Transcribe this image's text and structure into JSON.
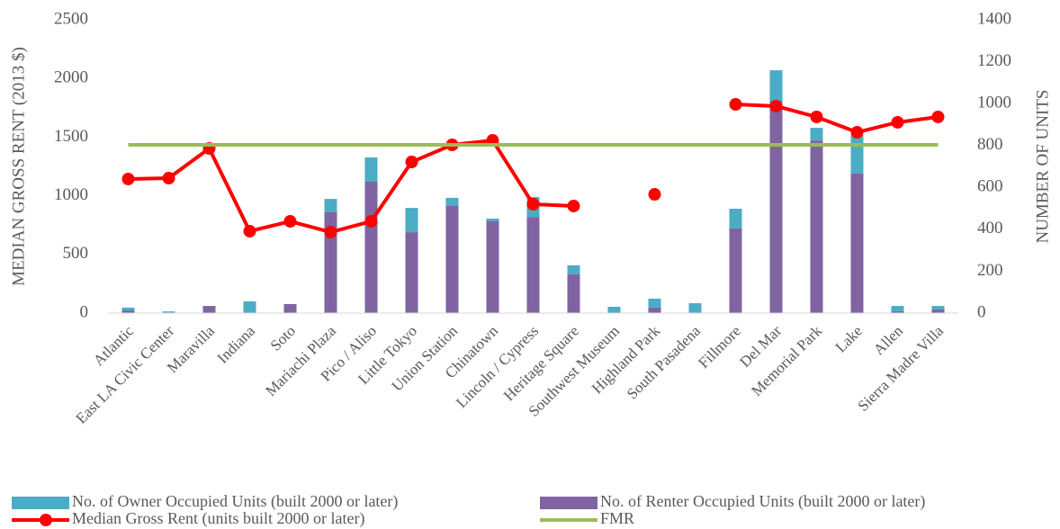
{
  "chart_data": {
    "type": "combo",
    "y_label": "MEDIAN GROSS RENT (2013 $)",
    "y2_label": "NUMBER OF UNITS",
    "categories": [
      "Atlantic",
      "East LA Civic Center",
      "Maravilla",
      "Indiana",
      "Soto",
      "Mariachi Plaza",
      "Pico / Aliso",
      "Little Tokyo",
      "Union Station",
      "Chinatown",
      "Lincoln / Cypress",
      "Heritage Square",
      "Southwest Museum",
      "Highland Park",
      "South Pasadena",
      "Fillmore",
      "Del Mar",
      "Memorial Park",
      "Lake",
      "Allen",
      "Sierra Madre Villa"
    ],
    "ylim": [
      0,
      2500
    ],
    "yticks": [
      0,
      500,
      1000,
      1500,
      2000,
      2500
    ],
    "y2lim": [
      0,
      1400
    ],
    "y2ticks": [
      0,
      200,
      400,
      600,
      800,
      1000,
      1200,
      1400
    ],
    "grid": false,
    "series": [
      {
        "name": "No. of Renter Occupied Units (built 2000 or later)",
        "type": "bar",
        "axis": "y2",
        "color": "#8064a2",
        "values": [
          13,
          0,
          34,
          0,
          43,
          481,
          627,
          386,
          511,
          438,
          459,
          185,
          0,
          26,
          0,
          404,
          1013,
          824,
          666,
          9,
          17
        ]
      },
      {
        "name": "No. of Owner Occupied Units (built 2000 or later)",
        "type": "bar",
        "axis": "y2",
        "color": "#4bacc6",
        "values": [
          13,
          8,
          0,
          56,
          0,
          64,
          116,
          116,
          39,
          13,
          95,
          43,
          30,
          43,
          47,
          94,
          146,
          60,
          184,
          25,
          17
        ]
      },
      {
        "name": "Median Gross Rent (units built 2000 or later)",
        "type": "line",
        "axis": "y",
        "color": "#ff0000",
        "values": [
          1143,
          1150,
          1403,
          698,
          782,
          690,
          782,
          1288,
          1434,
          1472,
          928,
          913,
          null,
          1012,
          null,
          1779,
          1764,
          1672,
          1541,
          1626,
          1672
        ]
      },
      {
        "name": "FMR",
        "type": "line",
        "axis": "y",
        "color": "#9bbb59",
        "values": [
          1434,
          1434,
          1434,
          1434,
          1434,
          1434,
          1434,
          1434,
          1434,
          1434,
          1434,
          1434,
          1434,
          1434,
          1434,
          1434,
          1434,
          1434,
          1434,
          1434,
          1434
        ]
      }
    ]
  }
}
